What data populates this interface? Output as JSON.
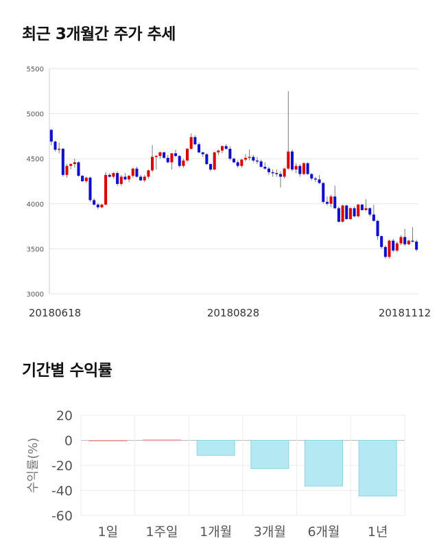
{
  "charts": {
    "price": {
      "title": "최근 3개월간 주가 추세"
    },
    "returns": {
      "title": "기간별 수익률"
    }
  },
  "chart_data": [
    {
      "type": "candlestick",
      "title": "최근 3개월간 주가 추세",
      "ylim": [
        3000,
        5500
      ],
      "yticks": [
        3000,
        3500,
        4000,
        4500,
        5000,
        5500
      ],
      "date_labels": [
        "20180618",
        "20180828",
        "20181112"
      ],
      "up_color": "#dd0000",
      "down_color": "#1010cc",
      "grid": true,
      "candles": [
        [
          4820,
          4830,
          4650,
          4690
        ],
        [
          4690,
          4700,
          4580,
          4600
        ],
        [
          4600,
          4680,
          4560,
          4610
        ],
        [
          4610,
          4620,
          4300,
          4320
        ],
        [
          4320,
          4440,
          4290,
          4420
        ],
        [
          4420,
          4450,
          4380,
          4440
        ],
        [
          4440,
          4500,
          4400,
          4460
        ],
        [
          4460,
          4470,
          4300,
          4310
        ],
        [
          4310,
          4320,
          4240,
          4250
        ],
        [
          4250,
          4300,
          4230,
          4290
        ],
        [
          4290,
          4300,
          4020,
          4040
        ],
        [
          4040,
          4060,
          3980,
          3990
        ],
        [
          3990,
          4010,
          3940,
          3960
        ],
        [
          3960,
          4000,
          3950,
          3990
        ],
        [
          3990,
          4350,
          3980,
          4320
        ],
        [
          4320,
          4340,
          4290,
          4300
        ],
        [
          4300,
          4350,
          4280,
          4340
        ],
        [
          4340,
          4360,
          4200,
          4220
        ],
        [
          4220,
          4320,
          4200,
          4300
        ],
        [
          4300,
          4340,
          4260,
          4270
        ],
        [
          4270,
          4320,
          4240,
          4310
        ],
        [
          4310,
          4400,
          4290,
          4390
        ],
        [
          4390,
          4410,
          4290,
          4300
        ],
        [
          4300,
          4320,
          4250,
          4260
        ],
        [
          4260,
          4320,
          4240,
          4300
        ],
        [
          4300,
          4380,
          4280,
          4370
        ],
        [
          4370,
          4650,
          4350,
          4520
        ],
        [
          4520,
          4540,
          4380,
          4530
        ],
        [
          4530,
          4580,
          4500,
          4570
        ],
        [
          4570,
          4580,
          4500,
          4510
        ],
        [
          4510,
          4540,
          4450,
          4460
        ],
        [
          4460,
          4560,
          4380,
          4560
        ],
        [
          4560,
          4600,
          4520,
          4530
        ],
        [
          4530,
          4540,
          4400,
          4420
        ],
        [
          4420,
          4500,
          4400,
          4480
        ],
        [
          4480,
          4620,
          4460,
          4610
        ],
        [
          4610,
          4780,
          4600,
          4740
        ],
        [
          4740,
          4760,
          4650,
          4660
        ],
        [
          4660,
          4680,
          4560,
          4570
        ],
        [
          4570,
          4580,
          4520,
          4550
        ],
        [
          4550,
          4560,
          4430,
          4440
        ],
        [
          4440,
          4450,
          4360,
          4380
        ],
        [
          4380,
          4580,
          4370,
          4570
        ],
        [
          4570,
          4600,
          4540,
          4590
        ],
        [
          4590,
          4650,
          4560,
          4640
        ],
        [
          4640,
          4660,
          4600,
          4610
        ],
        [
          4610,
          4640,
          4480,
          4500
        ],
        [
          4500,
          4510,
          4450,
          4460
        ],
        [
          4460,
          4480,
          4400,
          4420
        ],
        [
          4420,
          4500,
          4400,
          4490
        ],
        [
          4490,
          4550,
          4470,
          4510
        ],
        [
          4510,
          4600,
          4480,
          4520
        ],
        [
          4520,
          4540,
          4460,
          4480
        ],
        [
          4480,
          4520,
          4440,
          4470
        ],
        [
          4470,
          4490,
          4400,
          4410
        ],
        [
          4410,
          4460,
          4380,
          4390
        ],
        [
          4390,
          4410,
          4320,
          4350
        ],
        [
          4350,
          4380,
          4300,
          4340
        ],
        [
          4340,
          4380,
          4300,
          4330
        ],
        [
          4330,
          4360,
          4180,
          4300
        ],
        [
          4300,
          4400,
          4280,
          4390
        ],
        [
          4390,
          5250,
          4380,
          4580
        ],
        [
          4580,
          4600,
          4360,
          4380
        ],
        [
          4380,
          4450,
          4340,
          4420
        ],
        [
          4420,
          4440,
          4300,
          4330
        ],
        [
          4330,
          4460,
          4320,
          4450
        ],
        [
          4450,
          4460,
          4320,
          4330
        ],
        [
          4330,
          4340,
          4260,
          4280
        ],
        [
          4280,
          4300,
          4240,
          4270
        ],
        [
          4270,
          4320,
          4220,
          4230
        ],
        [
          4230,
          4240,
          4000,
          4020
        ],
        [
          4020,
          4080,
          3980,
          4000
        ],
        [
          4000,
          4100,
          3960,
          4080
        ],
        [
          4080,
          4200,
          3940,
          3950
        ],
        [
          3950,
          3970,
          3790,
          3800
        ],
        [
          3800,
          3990,
          3790,
          3980
        ],
        [
          3980,
          3990,
          3820,
          3830
        ],
        [
          3830,
          3960,
          3820,
          3950
        ],
        [
          3950,
          3970,
          3850,
          3860
        ],
        [
          3860,
          4000,
          3850,
          3990
        ],
        [
          3990,
          4000,
          3920,
          3930
        ],
        [
          3930,
          4050,
          3920,
          3950
        ],
        [
          3950,
          3960,
          3860,
          3880
        ],
        [
          3880,
          3990,
          3800,
          3810
        ],
        [
          3810,
          3820,
          3600,
          3640
        ],
        [
          3640,
          3650,
          3500,
          3520
        ],
        [
          3520,
          3540,
          3390,
          3410
        ],
        [
          3410,
          3600,
          3390,
          3590
        ],
        [
          3590,
          3610,
          3460,
          3480
        ],
        [
          3480,
          3580,
          3460,
          3560
        ],
        [
          3560,
          3650,
          3540,
          3630
        ],
        [
          3630,
          3720,
          3530,
          3550
        ],
        [
          3550,
          3600,
          3540,
          3590
        ],
        [
          3590,
          3740,
          3570,
          3580
        ],
        [
          3580,
          3600,
          3470,
          3490
        ]
      ]
    },
    {
      "type": "bar",
      "categories": [
        "1일",
        "1주일",
        "1개월",
        "3개월",
        "6개월",
        "1년"
      ],
      "values": [
        0,
        0.4,
        -12,
        -22.5,
        -36.5,
        -44.5
      ],
      "ylabel": "수익률(%)",
      "ylim": [
        -60,
        20
      ],
      "yticks": [
        20,
        0,
        -20,
        -40,
        -60
      ],
      "positive_color": "#f4c6c6",
      "negative_color": "#b4e9f3",
      "grid": true
    }
  ]
}
